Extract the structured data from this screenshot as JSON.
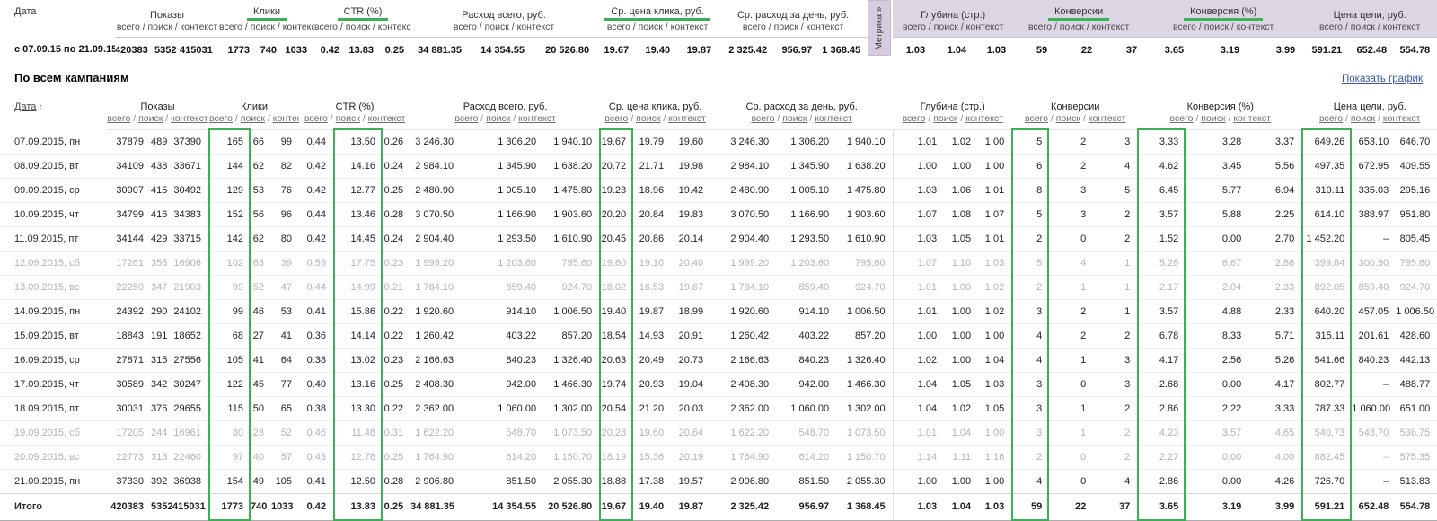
{
  "summary": {
    "date_label": "Дата",
    "date_range": "с 07.09.15 по 21.09.15",
    "sub_columns_label": "всего / поиск / контекст",
    "metrika_tab_label": "Метрика »",
    "groups": [
      {
        "label": "Показы",
        "underlined": false,
        "section": "direct"
      },
      {
        "label": "Клики",
        "underlined": true,
        "section": "direct"
      },
      {
        "label": "CTR (%)",
        "underlined": true,
        "section": "direct"
      },
      {
        "label": "Расход всего, руб.",
        "underlined": false,
        "section": "direct"
      },
      {
        "label": "Ср. цена клика, руб.",
        "underlined": true,
        "section": "direct"
      },
      {
        "label": "Ср. расход за день, руб.",
        "underlined": false,
        "section": "direct"
      },
      {
        "label": "Глубина (стр.)",
        "underlined": false,
        "section": "metrika"
      },
      {
        "label": "Конверсии",
        "underlined": true,
        "section": "metrika"
      },
      {
        "label": "Конверсия (%)",
        "underlined": true,
        "section": "metrika"
      },
      {
        "label": "Цена цели, руб.",
        "underlined": false,
        "section": "metrika"
      }
    ],
    "values": [
      "420383",
      "5352",
      "415031",
      "1773",
      "740",
      "1033",
      "0.42",
      "13.83",
      "0.25",
      "34 881.35",
      "14 354.55",
      "20 526.80",
      "19.67",
      "19.40",
      "19.87",
      "2 325.42",
      "956.97",
      "1 368.45",
      "1.03",
      "1.04",
      "1.03",
      "59",
      "22",
      "37",
      "3.65",
      "3.19",
      "3.99",
      "591.21",
      "652.48",
      "554.78"
    ]
  },
  "campaigns_section": {
    "title": "По всем кампаниям",
    "show_chart_link": "Показать график"
  },
  "table": {
    "date_header": "Дата",
    "sort_arrow": "↑",
    "groups": [
      "Показы",
      "Клики",
      "CTR (%)",
      "Расход всего, руб.",
      "Ср. цена клика, руб.",
      "Ср. расход за день, руб.",
      "Глубина (стр.)",
      "Конверсии",
      "Конверсия (%)",
      "Цена цели, руб."
    ],
    "sub_columns": [
      "всего",
      "поиск",
      "контекст"
    ],
    "rows": [
      {
        "date": "07.09.2015, пн",
        "weekend": false,
        "total": false,
        "values": [
          "37879",
          "489",
          "37390",
          "165",
          "66",
          "99",
          "0.44",
          "13.50",
          "0.26",
          "3 246.30",
          "1 306.20",
          "1 940.10",
          "19.67",
          "19.79",
          "19.60",
          "3 246.30",
          "1 306.20",
          "1 940.10",
          "1.01",
          "1.02",
          "1.00",
          "5",
          "2",
          "3",
          "3.33",
          "3.28",
          "3.37",
          "649.26",
          "653.10",
          "646.70"
        ]
      },
      {
        "date": "08.09.2015, вт",
        "weekend": false,
        "total": false,
        "values": [
          "34109",
          "438",
          "33671",
          "144",
          "62",
          "82",
          "0.42",
          "14.16",
          "0.24",
          "2 984.10",
          "1 345.90",
          "1 638.20",
          "20.72",
          "21.71",
          "19.98",
          "2 984.10",
          "1 345.90",
          "1 638.20",
          "1.00",
          "1.00",
          "1.00",
          "6",
          "2",
          "4",
          "4.62",
          "3.45",
          "5.56",
          "497.35",
          "672.95",
          "409.55"
        ]
      },
      {
        "date": "09.09.2015, ср",
        "weekend": false,
        "total": false,
        "values": [
          "30907",
          "415",
          "30492",
          "129",
          "53",
          "76",
          "0.42",
          "12.77",
          "0.25",
          "2 480.90",
          "1 005.10",
          "1 475.80",
          "19.23",
          "18.96",
          "19.42",
          "2 480.90",
          "1 005.10",
          "1 475.80",
          "1.03",
          "1.06",
          "1.01",
          "8",
          "3",
          "5",
          "6.45",
          "5.77",
          "6.94",
          "310.11",
          "335.03",
          "295.16"
        ]
      },
      {
        "date": "10.09.2015, чт",
        "weekend": false,
        "total": false,
        "values": [
          "34799",
          "416",
          "34383",
          "152",
          "56",
          "96",
          "0.44",
          "13.46",
          "0.28",
          "3 070.50",
          "1 166.90",
          "1 903.60",
          "20.20",
          "20.84",
          "19.83",
          "3 070.50",
          "1 166.90",
          "1 903.60",
          "1.07",
          "1.08",
          "1.07",
          "5",
          "3",
          "2",
          "3.57",
          "5.88",
          "2.25",
          "614.10",
          "388.97",
          "951.80"
        ]
      },
      {
        "date": "11.09.2015, пт",
        "weekend": false,
        "total": false,
        "values": [
          "34144",
          "429",
          "33715",
          "142",
          "62",
          "80",
          "0.42",
          "14.45",
          "0.24",
          "2 904.40",
          "1 293.50",
          "1 610.90",
          "20.45",
          "20.86",
          "20.14",
          "2 904.40",
          "1 293.50",
          "1 610.90",
          "1.03",
          "1.05",
          "1.01",
          "2",
          "0",
          "2",
          "1.52",
          "0.00",
          "2.70",
          "1 452.20",
          "–",
          "805.45"
        ]
      },
      {
        "date": "12.09.2015, сб",
        "weekend": true,
        "total": false,
        "values": [
          "17261",
          "355",
          "16906",
          "102",
          "63",
          "39",
          "0.59",
          "17.75",
          "0.23",
          "1 999.20",
          "1 203.60",
          "795.60",
          "19.60",
          "19.10",
          "20.40",
          "1 999.20",
          "1 203.60",
          "795.60",
          "1.07",
          "1.10",
          "1.03",
          "5",
          "4",
          "1",
          "5.26",
          "6.67",
          "2.86",
          "399.84",
          "300.90",
          "795.60"
        ]
      },
      {
        "date": "13.09.2015, вс",
        "weekend": true,
        "total": false,
        "values": [
          "22250",
          "347",
          "21903",
          "99",
          "52",
          "47",
          "0.44",
          "14.99",
          "0.21",
          "1 784.10",
          "859.40",
          "924.70",
          "18.02",
          "16.53",
          "19.67",
          "1 784.10",
          "859.40",
          "924.70",
          "1.01",
          "1.00",
          "1.02",
          "2",
          "1",
          "1",
          "2.17",
          "2.04",
          "2.33",
          "892.05",
          "859.40",
          "924.70"
        ]
      },
      {
        "date": "14.09.2015, пн",
        "weekend": false,
        "total": false,
        "values": [
          "24392",
          "290",
          "24102",
          "99",
          "46",
          "53",
          "0.41",
          "15.86",
          "0.22",
          "1 920.60",
          "914.10",
          "1 006.50",
          "19.40",
          "19.87",
          "18.99",
          "1 920.60",
          "914.10",
          "1 006.50",
          "1.01",
          "1.00",
          "1.02",
          "3",
          "2",
          "1",
          "3.57",
          "4.88",
          "2.33",
          "640.20",
          "457.05",
          "1 006.50"
        ]
      },
      {
        "date": "15.09.2015, вт",
        "weekend": false,
        "total": false,
        "values": [
          "18843",
          "191",
          "18652",
          "68",
          "27",
          "41",
          "0.36",
          "14.14",
          "0.22",
          "1 260.42",
          "403.22",
          "857.20",
          "18.54",
          "14.93",
          "20.91",
          "1 260.42",
          "403.22",
          "857.20",
          "1.00",
          "1.00",
          "1.00",
          "4",
          "2",
          "2",
          "6.78",
          "8.33",
          "5.71",
          "315.11",
          "201.61",
          "428.60"
        ]
      },
      {
        "date": "16.09.2015, ср",
        "weekend": false,
        "total": false,
        "values": [
          "27871",
          "315",
          "27556",
          "105",
          "41",
          "64",
          "0.38",
          "13.02",
          "0.23",
          "2 166.63",
          "840.23",
          "1 326.40",
          "20.63",
          "20.49",
          "20.73",
          "2 166.63",
          "840.23",
          "1 326.40",
          "1.02",
          "1.00",
          "1.04",
          "4",
          "1",
          "3",
          "4.17",
          "2.56",
          "5.26",
          "541.66",
          "840.23",
          "442.13"
        ]
      },
      {
        "date": "17.09.2015, чт",
        "weekend": false,
        "total": false,
        "values": [
          "30589",
          "342",
          "30247",
          "122",
          "45",
          "77",
          "0.40",
          "13.16",
          "0.25",
          "2 408.30",
          "942.00",
          "1 466.30",
          "19.74",
          "20.93",
          "19.04",
          "2 408.30",
          "942.00",
          "1 466.30",
          "1.04",
          "1.05",
          "1.03",
          "3",
          "0",
          "3",
          "2.68",
          "0.00",
          "4.17",
          "802.77",
          "–",
          "488.77"
        ]
      },
      {
        "date": "18.09.2015, пт",
        "weekend": false,
        "total": false,
        "values": [
          "30031",
          "376",
          "29655",
          "115",
          "50",
          "65",
          "0.38",
          "13.30",
          "0.22",
          "2 362.00",
          "1 060.00",
          "1 302.00",
          "20.54",
          "21.20",
          "20.03",
          "2 362.00",
          "1 060.00",
          "1 302.00",
          "1.04",
          "1.02",
          "1.05",
          "3",
          "1",
          "2",
          "2.86",
          "2.22",
          "3.33",
          "787.33",
          "1 060.00",
          "651.00"
        ]
      },
      {
        "date": "19.09.2015, сб",
        "weekend": true,
        "total": false,
        "values": [
          "17205",
          "244",
          "16961",
          "80",
          "28",
          "52",
          "0.46",
          "11.48",
          "0.31",
          "1 622.20",
          "548.70",
          "1 073.50",
          "20.28",
          "19.60",
          "20.64",
          "1 622.20",
          "548.70",
          "1 073.50",
          "1.01",
          "1.04",
          "1.00",
          "3",
          "1",
          "2",
          "4.23",
          "3.57",
          "4.65",
          "540.73",
          "548.70",
          "536.75"
        ]
      },
      {
        "date": "20.09.2015, вс",
        "weekend": true,
        "total": false,
        "values": [
          "22773",
          "313",
          "22460",
          "97",
          "40",
          "57",
          "0.43",
          "12.78",
          "0.25",
          "1 764.90",
          "614.20",
          "1 150.70",
          "18.19",
          "15.36",
          "20.19",
          "1 764.90",
          "614.20",
          "1 150.70",
          "1.14",
          "1.11",
          "1.16",
          "2",
          "0",
          "2",
          "2.27",
          "0.00",
          "4.00",
          "882.45",
          "–",
          "575.35"
        ]
      },
      {
        "date": "21.09.2015, пн",
        "weekend": false,
        "total": false,
        "values": [
          "37330",
          "392",
          "36938",
          "154",
          "49",
          "105",
          "0.41",
          "12.50",
          "0.28",
          "2 906.80",
          "851.50",
          "2 055.30",
          "18.88",
          "17.38",
          "19.57",
          "2 906.80",
          "851.50",
          "2 055.30",
          "1.00",
          "1.00",
          "1.00",
          "4",
          "0",
          "4",
          "2.86",
          "0.00",
          "4.26",
          "726.70",
          "–",
          "513.83"
        ]
      },
      {
        "date": "Итого",
        "weekend": false,
        "total": true,
        "values": [
          "420383",
          "5352",
          "415031",
          "1773",
          "740",
          "1033",
          "0.42",
          "13.83",
          "0.25",
          "34 881.35",
          "14 354.55",
          "20 526.80",
          "19.67",
          "19.40",
          "19.87",
          "2 325.42",
          "956.97",
          "1 368.45",
          "1.03",
          "1.04",
          "1.03",
          "59",
          "22",
          "37",
          "3.65",
          "3.19",
          "3.99",
          "591.21",
          "652.48",
          "554.78"
        ]
      }
    ]
  },
  "colors": {
    "highlight_green": "#3cb054",
    "metrika_lavender": "#dcd6e4",
    "link_blue": "#3a57ad"
  }
}
